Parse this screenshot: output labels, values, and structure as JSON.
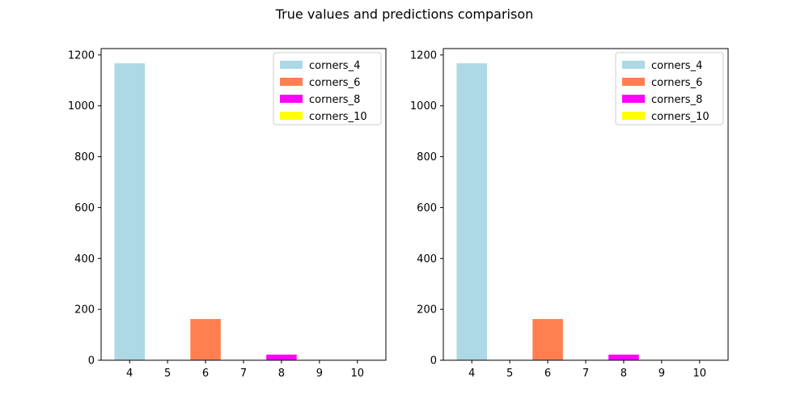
{
  "figure": {
    "suptitle": "True values and predictions comparison"
  },
  "chart_data": [
    {
      "type": "bar",
      "title": "",
      "xlabel": "",
      "ylabel": "",
      "xlim": [
        3.25,
        10.75
      ],
      "ylim": [
        0,
        1225
      ],
      "x_ticks": [
        4,
        5,
        6,
        7,
        8,
        9,
        10
      ],
      "x_tick_labels": [
        "4",
        "5",
        "6",
        "7",
        "8",
        "9",
        "10"
      ],
      "y_ticks": [
        0,
        200,
        400,
        600,
        800,
        1000,
        1200
      ],
      "y_tick_labels": [
        "0",
        "200",
        "400",
        "600",
        "800",
        "1000",
        "1200"
      ],
      "grid": false,
      "legend_position": "top-right",
      "series": [
        {
          "name": "corners_4",
          "x": 4,
          "value": 1167,
          "color": "#add8e6"
        },
        {
          "name": "corners_6",
          "x": 6,
          "value": 162,
          "color": "#ff7f50"
        },
        {
          "name": "corners_8",
          "x": 8,
          "value": 22,
          "color": "#ff00ff"
        },
        {
          "name": "corners_10",
          "x": 10,
          "value": 0,
          "color": "#ffff00"
        }
      ]
    },
    {
      "type": "bar",
      "title": "",
      "xlabel": "",
      "ylabel": "",
      "xlim": [
        3.25,
        10.75
      ],
      "ylim": [
        0,
        1225
      ],
      "x_ticks": [
        4,
        5,
        6,
        7,
        8,
        9,
        10
      ],
      "x_tick_labels": [
        "4",
        "5",
        "6",
        "7",
        "8",
        "9",
        "10"
      ],
      "y_ticks": [
        0,
        200,
        400,
        600,
        800,
        1000,
        1200
      ],
      "y_tick_labels": [
        "0",
        "200",
        "400",
        "600",
        "800",
        "1000",
        "1200"
      ],
      "grid": false,
      "legend_position": "top-right",
      "series": [
        {
          "name": "corners_4",
          "x": 4,
          "value": 1167,
          "color": "#add8e6"
        },
        {
          "name": "corners_6",
          "x": 6,
          "value": 162,
          "color": "#ff7f50"
        },
        {
          "name": "corners_8",
          "x": 8,
          "value": 22,
          "color": "#ff00ff"
        },
        {
          "name": "corners_10",
          "x": 10,
          "value": 0,
          "color": "#ffff00"
        }
      ]
    }
  ]
}
